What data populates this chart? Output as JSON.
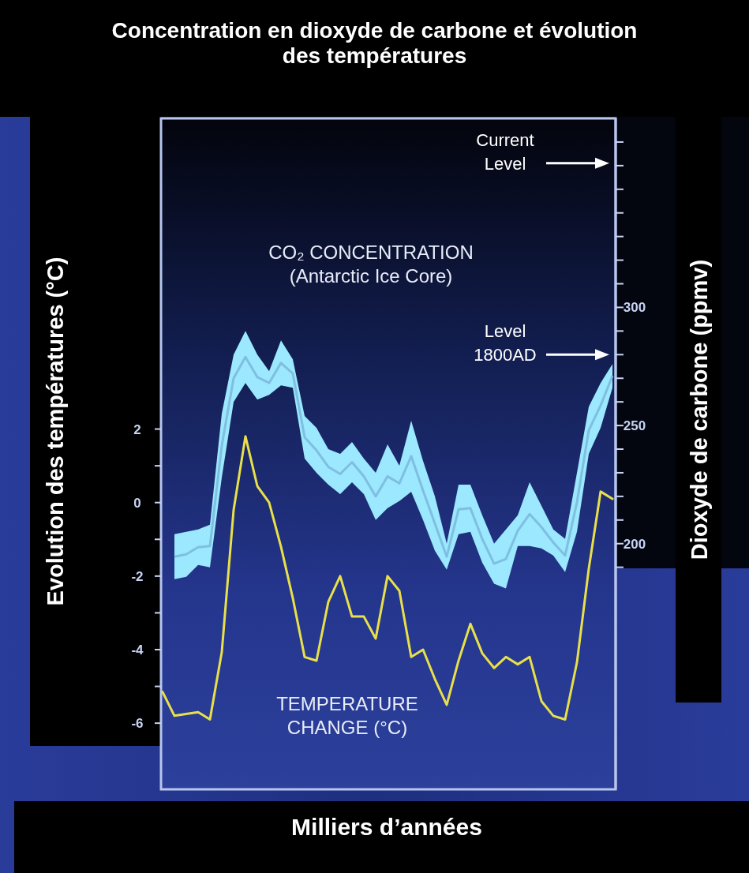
{
  "chart_data": {
    "type": "line",
    "title": "Concentration en dioxyde de carbone et évolution des températures",
    "xlabel": "Milliers d’années",
    "ylabel": "Evolution des températures (°C)",
    "y2label": "Dioxyde de carbone (ppmv)",
    "categories": [
      null,
      null,
      null,
      null,
      null,
      null,
      null,
      null,
      null,
      null,
      null,
      null,
      null,
      null,
      null,
      null,
      null,
      null,
      null,
      null,
      null,
      null,
      null,
      null,
      null,
      null,
      null,
      null,
      null,
      null,
      null,
      null,
      null,
      null,
      null,
      null,
      null,
      null,
      null
    ],
    "series": [
      {
        "type": "line",
        "axis": "y2",
        "color": "#7fbfe0",
        "values": [
          null,
          194.5,
          195.5,
          198.5,
          199,
          241.5,
          270,
          279,
          270.5,
          268,
          276.5,
          272,
          245,
          239.5,
          232.5,
          229.5,
          234.5,
          228.5,
          220,
          228.5,
          225.5,
          237,
          222.5,
          208.5,
          194.5,
          214.5,
          215,
          202,
          191.5,
          193.5,
          205.5,
          212.5,
          207,
          200.5,
          195,
          217.5,
          248,
          258.5,
          271
        ],
        "upper": [
          null,
          204,
          205,
          206,
          208,
          255,
          280,
          290,
          280,
          273,
          286,
          278,
          254,
          249,
          240,
          238,
          243,
          236,
          230,
          242,
          233,
          252,
          235,
          220,
          200,
          225,
          225,
          212,
          200,
          206,
          212,
          226,
          216,
          206,
          202,
          230,
          258,
          268,
          276
        ],
        "lower": [
          null,
          185,
          186,
          191,
          190,
          228,
          260,
          268,
          261,
          263,
          267,
          266,
          236,
          230,
          225,
          221,
          226,
          221,
          210,
          215,
          218,
          222,
          210,
          197,
          189,
          204,
          205,
          192,
          183,
          181,
          199,
          199,
          198,
          195,
          188,
          205,
          238,
          249,
          266
        ]
      },
      {
        "color": "#e8e04a",
        "values": [
          -5.15,
          -5.8,
          -5.75,
          -5.7,
          -5.9,
          -4.07,
          -0.2,
          1.8,
          0.45,
          0,
          -1.2,
          -2.6,
          -4.2,
          -4.3,
          -2.7,
          -2,
          -3.1,
          -3.1,
          -3.7,
          -2,
          -2.4,
          -4.2,
          -4,
          -4.8,
          -5.5,
          -4.3,
          -3.3,
          -4.1,
          -4.5,
          -4.2,
          -4.4,
          -4.2,
          -5.4,
          -5.8,
          -5.9,
          -4.35,
          -1.8,
          0.3,
          0.1
        ]
      }
    ],
    "ylim": [
      -7.8,
      10.45
    ],
    "yticks": [
      -6,
      {
        "value": -5,
        "label": null
      },
      -4,
      {
        "value": -3,
        "label": null
      },
      -2,
      {
        "value": -1,
        "label": null
      },
      0,
      {
        "value": 1,
        "label": null
      },
      2
    ],
    "y2lim": [
      96,
      380
    ],
    "y2ticks": [
      {
        "value": 190,
        "label": null
      },
      200,
      {
        "value": 210,
        "label": null
      },
      {
        "value": 220,
        "label": null
      },
      {
        "value": 230,
        "label": null
      },
      {
        "value": 240,
        "label": null
      },
      250,
      {
        "value": 260,
        "label": null
      },
      {
        "value": 270,
        "label": null
      },
      {
        "value": 280,
        "label": null
      },
      {
        "value": 290,
        "label": null
      },
      300,
      {
        "value": 310,
        "label": null
      },
      {
        "value": 320,
        "label": null
      },
      {
        "value": 330,
        "label": null
      },
      {
        "value": 340,
        "label": null
      },
      {
        "value": 350,
        "label": null
      },
      {
        "value": 360,
        "label": null
      },
      {
        "value": 370,
        "label": null
      }
    ],
    "ref_lines": [
      {
        "axis": "y2",
        "value": 361,
        "label": "Current\nLevel",
        "color": "#ffffff"
      },
      {
        "axis": "y2",
        "value": 280,
        "label": "Level\n1800AD",
        "color": "#ffffff"
      }
    ],
    "annotations": [
      "CO₂ CONCENTRATION\n(Antarctic Ice Core)",
      "TEMPERATURE\nCHANGE (°C)"
    ],
    "tick_labels": "y"
  }
}
